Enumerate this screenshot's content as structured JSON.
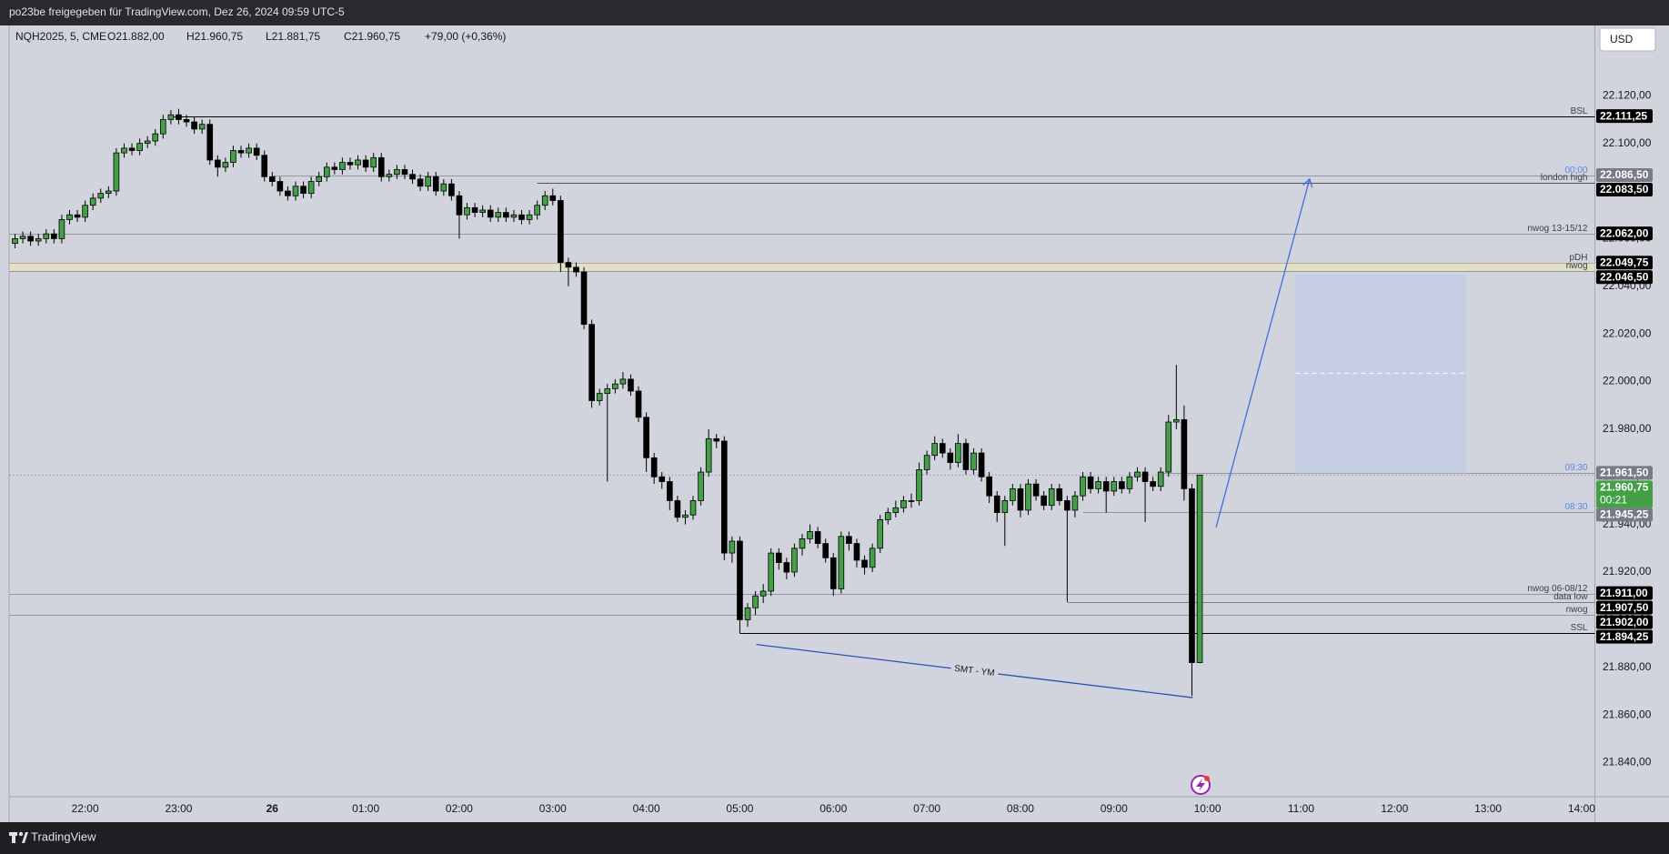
{
  "header": "po23be freigegeben für TradingView.com, Dez 26, 2024 09:59 UTC-5",
  "footer": "TradingView",
  "chart_data": {
    "type": "candlestick",
    "currency": "USD",
    "legend": {
      "symbol": "NQH2025, 5, CME",
      "open": "O21.882,00",
      "high": "H21.960,75",
      "low": "L21.881,75",
      "close": "C21.960,75",
      "change": "+79,00 (+0,36%)"
    },
    "up_color": "#43a047",
    "down_color": "#000000",
    "border_color": "#000000",
    "grid": false,
    "xlim": [
      -0.7,
      202.7
    ],
    "ylim": [
      21825.7,
      22149.5
    ],
    "yticks": [
      {
        "value": 21840,
        "label": "21.840,00"
      },
      {
        "value": 21860,
        "label": "21.860,00"
      },
      {
        "value": 21880,
        "label": "21.880,00"
      },
      {
        "value": 21900,
        "label": "21.900,00"
      },
      {
        "value": 21920,
        "label": "21.920,00"
      },
      {
        "value": 21940,
        "label": "21.940,00"
      },
      {
        "value": 21960,
        "label": "21.960,00"
      },
      {
        "value": 21980,
        "label": "21.980,00"
      },
      {
        "value": 22000,
        "label": "22.000,00"
      },
      {
        "value": 22020,
        "label": "22.020,00"
      },
      {
        "value": 22040,
        "label": "22.040,00"
      },
      {
        "value": 22060,
        "label": "22.060,00"
      },
      {
        "value": 22080,
        "label": "22.080,00"
      },
      {
        "value": 22100,
        "label": "22.100,00"
      },
      {
        "value": 22120,
        "label": "22.120,00"
      }
    ],
    "xticks": [
      {
        "value": 9,
        "label": "22:00"
      },
      {
        "value": 21,
        "label": "23:00"
      },
      {
        "value": 33,
        "label": "26",
        "bold": true
      },
      {
        "value": 45,
        "label": "01:00"
      },
      {
        "value": 57,
        "label": "02:00"
      },
      {
        "value": 69,
        "label": "03:00"
      },
      {
        "value": 81,
        "label": "04:00"
      },
      {
        "value": 93,
        "label": "05:00"
      },
      {
        "value": 105,
        "label": "06:00"
      },
      {
        "value": 117,
        "label": "07:00"
      },
      {
        "value": 129,
        "label": "08:00"
      },
      {
        "value": 141,
        "label": "09:00"
      },
      {
        "value": 153,
        "label": "10:00"
      },
      {
        "value": 165,
        "label": "11:00"
      },
      {
        "value": 177,
        "label": "12:00"
      },
      {
        "value": 189,
        "label": "13:00"
      },
      {
        "value": 201,
        "label": "14:00"
      }
    ],
    "open": [
      22058,
      22060,
      22061,
      22059,
      22060,
      22062,
      22060,
      22068,
      22070,
      22069,
      22074,
      22077,
      22079,
      22080,
      22096,
      22098,
      22097,
      22100,
      22101,
      22104,
      22110,
      22112,
      22110,
      22109,
      22106,
      22108,
      22093,
      22090,
      22092,
      22097,
      22096,
      22098,
      22095,
      22086,
      22084,
      22080,
      22078,
      22082,
      22079,
      22084,
      22086,
      22090,
      22089,
      22092,
      22091,
      22093,
      22090,
      22094,
      22086,
      22087,
      22089,
      22087,
      22085,
      22082,
      22086,
      22080,
      22083,
      22078,
      22070,
      22073,
      22071,
      22072,
      22069,
      22071,
      22069,
      22070,
      22068,
      22070,
      22074,
      22078,
      22076,
      22050,
      22048,
      22046,
      22024,
      21992,
      21995,
      21997,
      21999,
      22001,
      21996,
      21985,
      21968,
      21960,
      21958,
      21950,
      21943,
      21944,
      21950,
      21962,
      21976,
      21975,
      21928,
      21933,
      21900,
      21905,
      21910,
      21912,
      21928,
      21924,
      21920,
      21930,
      21934,
      21937,
      21932,
      21926,
      21913,
      21935,
      21932,
      21925,
      21922,
      21930,
      21942,
      21945,
      21947,
      21950,
      21950,
      21963,
      21969,
      21974,
      21970,
      21966,
      21974,
      21963,
      21970,
      21960,
      21952,
      21945,
      21950,
      21955,
      21946,
      21957,
      21952,
      21948,
      21955,
      21950,
      21946,
      21952,
      21960,
      21955,
      21958,
      21954,
      21958,
      21955,
      21960,
      21962,
      21958,
      21956,
      21962,
      21983,
      21984,
      21955,
      21882
    ],
    "high": [
      22062,
      22063,
      22063,
      22062,
      22064,
      22064,
      22070,
      22072,
      22072,
      22076,
      22079,
      22081,
      22082,
      22098,
      22100,
      22100,
      22102,
      22103,
      22106,
      22112,
      22114,
      22114.5,
      22112,
      22111,
      22110,
      22110,
      22095,
      22094,
      22099,
      22099,
      22100,
      22100,
      22097,
      22088,
      22086,
      22082,
      22084,
      22084,
      22086,
      22088,
      22092,
      22092,
      22094,
      22094,
      22095,
      22095,
      22096,
      22096,
      22089,
      22091,
      22091,
      22089,
      22087,
      22088,
      22088,
      22085,
      22085,
      22080,
      22075,
      22075,
      22074,
      22074,
      22073,
      22073,
      22072,
      22072,
      22072,
      22076,
      22080,
      22081,
      22078,
      22052,
      22050,
      22048,
      22026,
      21997,
      21999,
      22001,
      22004,
      22003,
      21998,
      21987,
      21970,
      21962,
      21960,
      21952,
      21946,
      21952,
      21964,
      21980,
      21978,
      21977,
      21935,
      21935,
      21907,
      21912,
      21915,
      21930,
      21930,
      21926,
      21932,
      21936,
      21940,
      21939,
      21934,
      21928,
      21937,
      21937,
      21934,
      21927,
      21932,
      21944,
      21947,
      21950,
      21952,
      21953,
      21966,
      21971,
      21977,
      21976,
      21972,
      21978,
      21976,
      21972,
      21972,
      21962,
      21954,
      21952,
      21957,
      21957,
      21959,
      21959,
      21954,
      21957,
      21957,
      21952,
      21954,
      21962,
      21962,
      21960,
      21960,
      21960,
      21960,
      21962,
      21964,
      21964,
      21960,
      21964,
      21986,
      22007,
      21990,
      21957,
      21960.75
    ],
    "low": [
      22056,
      22058,
      22057,
      22057,
      22058,
      22058,
      22058,
      22066,
      22067,
      22067,
      22072,
      22075,
      22077,
      22078,
      22094,
      22095,
      22095,
      22098,
      22099,
      22102,
      22108,
      22108,
      22107,
      22104,
      22104,
      22091,
      22086,
      22088,
      22090,
      22094,
      22094,
      22093,
      22084,
      22082,
      22078,
      22076,
      22076,
      22077,
      22077,
      22082,
      22084,
      22087,
      22087,
      22089,
      22089,
      22088,
      22088,
      22084,
      22084,
      22085,
      22085,
      22083,
      22080,
      22080,
      22078,
      22078,
      22076,
      22060,
      22068,
      22069,
      22069,
      22067,
      22067,
      22067,
      22067,
      22066,
      22066,
      22068,
      22072,
      22074,
      22046,
      22040,
      22044,
      22022,
      21989,
      21990,
      21958,
      21995,
      21997,
      21994,
      21983,
      21962,
      21957,
      21955,
      21946,
      21941,
      21940,
      21942,
      21948,
      21960,
      21972,
      21925,
      21924,
      21894.25,
      21897,
      21902,
      21907,
      21910,
      21921,
      21917,
      21918,
      21927,
      21932,
      21930,
      21924,
      21910,
      21911,
      21929,
      21922,
      21919,
      21920,
      21928,
      21940,
      21943,
      21945,
      21947,
      21948,
      21961,
      21967,
      21968,
      21963,
      21964,
      21961,
      21961,
      21958,
      21949,
      21941,
      21931,
      21948,
      21943,
      21944,
      21950,
      21946,
      21946,
      21948,
      21907.5,
      21943,
      21950,
      21953,
      21953,
      21945,
      21952,
      21953,
      21953,
      21958,
      21941,
      21954,
      21954,
      21960,
      21980,
      21950,
      21868,
      21881.75
    ],
    "close": [
      22060,
      22061,
      22059,
      22060,
      22062,
      22060,
      22068,
      22070,
      22069,
      22074,
      22077,
      22079,
      22080,
      22096,
      22098,
      22097,
      22100,
      22101,
      22104,
      22110,
      22112,
      22110,
      22109,
      22106,
      22108,
      22093,
      22090,
      22092,
      22097,
      22096,
      22098,
      22095,
      22086,
      22084,
      22080,
      22078,
      22082,
      22079,
      22084,
      22086,
      22090,
      22089,
      22092,
      22091,
      22093,
      22090,
      22094,
      22086,
      22087,
      22089,
      22087,
      22085,
      22082,
      22086,
      22080,
      22083,
      22078,
      22070,
      22073,
      22071,
      22072,
      22069,
      22071,
      22069,
      22070,
      22068,
      22070,
      22074,
      22078,
      22076,
      22050,
      22048,
      22046,
      22024,
      21992,
      21995,
      21997,
      21999,
      22001,
      21996,
      21985,
      21968,
      21960,
      21958,
      21950,
      21943,
      21944,
      21950,
      21962,
      21976,
      21975,
      21928,
      21933,
      21900,
      21905,
      21910,
      21912,
      21928,
      21924,
      21920,
      21930,
      21934,
      21937,
      21932,
      21926,
      21913,
      21935,
      21932,
      21925,
      21922,
      21930,
      21942,
      21945,
      21947,
      21950,
      21950,
      21963,
      21969,
      21974,
      21970,
      21966,
      21974,
      21963,
      21970,
      21960,
      21952,
      21945,
      21950,
      21955,
      21946,
      21957,
      21952,
      21948,
      21955,
      21950,
      21946,
      21952,
      21960,
      21955,
      21958,
      21954,
      21958,
      21955,
      21960,
      21962,
      21958,
      21956,
      21962,
      21983,
      21984,
      21955,
      21882,
      21960.75
    ],
    "annotations": [
      {
        "name": "BSL",
        "price": {
          "value": 22111.25,
          "label": "22.111,25"
        },
        "start": 20,
        "color": "#000000",
        "tag_color": "#000000"
      },
      {
        "name": "00:00",
        "price": {
          "value": 22086.5,
          "label": "22.086,50"
        },
        "start": 33,
        "color": "#9598a1",
        "label_color": "#5b86e5",
        "tag_color": "#787b86"
      },
      {
        "name": "london high",
        "price": {
          "value": 22083.5,
          "label": "22.083,50"
        },
        "start": 67,
        "color": "#50535e",
        "tag_color": "#000000"
      },
      {
        "name": "nwog 13-15/12",
        "price": {
          "value": 22062,
          "label": "22.062,00"
        },
        "color": "#9598a1",
        "tag_color": "#000000"
      },
      {
        "name": "pDH",
        "price": {
          "value": 22049.75,
          "label": "22.049,75"
        },
        "color": "#000000",
        "tag_color": "#000000"
      },
      {
        "name": "nwog",
        "price": {
          "value": 22046.5,
          "label": "22.046,50"
        },
        "color": "#9598a1",
        "tag_color": "#000000",
        "zone_color": "#e3e0c6"
      },
      {
        "name": "09:30",
        "price": {
          "value": 21961.5,
          "label": "21.961,50"
        },
        "start": 147,
        "color": "#9598a1",
        "label_color": "#5b86e5",
        "tag_color": "#787b86"
      },
      {
        "name": "08:30",
        "price": {
          "value": 21945.25,
          "label": "21.945,25"
        },
        "start": 137,
        "color": "#9598a1",
        "label_color": "#5b86e5",
        "tag_color": "#787b86"
      },
      {
        "name": "nwog 06-08/12",
        "price": {
          "value": 21911,
          "label": "21.911,00"
        },
        "color": "#9598a1",
        "tag_color": "#000000"
      },
      {
        "name": "data low",
        "price": {
          "value": 21907.5,
          "label": "21.907,50"
        },
        "start": 135,
        "color": "#787b86",
        "tag_color": "#000000"
      },
      {
        "name": "nwog",
        "price": {
          "value": 21902,
          "label": "21.902,00"
        },
        "color": "#9598a1",
        "tag_color": "#000000"
      },
      {
        "name": "SSL",
        "price": {
          "value": 21894.25,
          "label": "21.894,25"
        },
        "start": 93,
        "color": "#000000",
        "tag_color": "#000000"
      }
    ],
    "last_price": {
      "value": 21960.75,
      "label": "21.960,75"
    },
    "countdown": "00:21",
    "last_color": "#43a047",
    "position": {
      "start": 164.3,
      "end": 186.2,
      "top": 22045,
      "mid": 22003.5,
      "bottom": 21961.5,
      "color": "#c3cde3"
    },
    "arrow": {
      "from": {
        "x": 154.1,
        "y": 21938.8
      },
      "to": {
        "x": 166.1,
        "y": 22085.1
      },
      "color": "#3d6fe0"
    },
    "smt": {
      "label": "SMT - YM",
      "from": {
        "x": 95.1,
        "y": 21889.6
      },
      "to": {
        "x": 151.1,
        "y": 21867.3
      },
      "color": "#2f4fb0"
    }
  }
}
